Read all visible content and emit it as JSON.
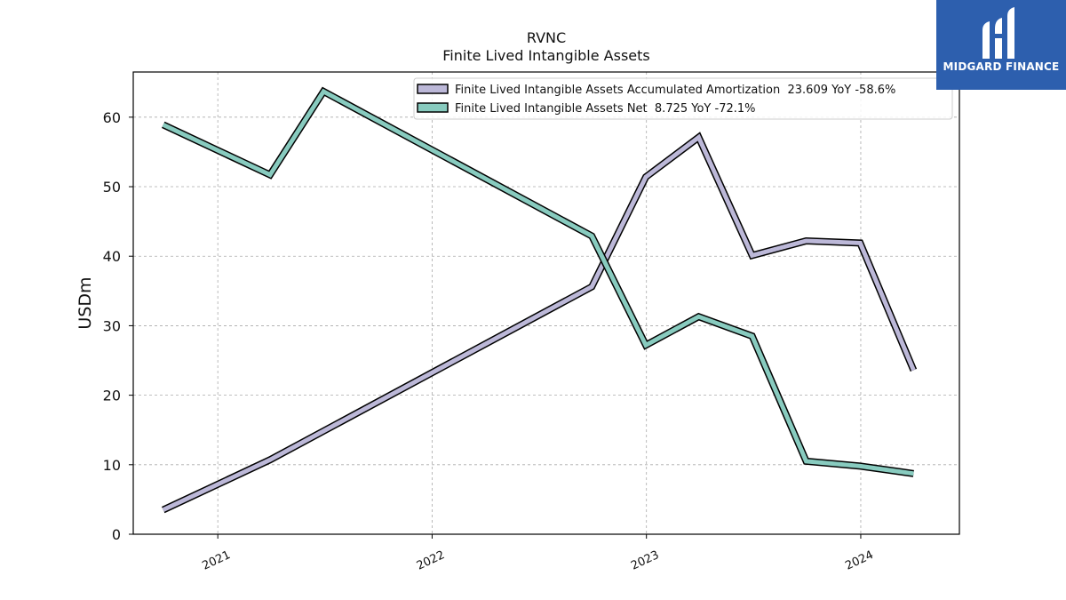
{
  "chart_data": {
    "type": "line",
    "title": "RVNC",
    "subtitle": "Finite Lived Intangible Assets",
    "ylabel": "USDm",
    "xlabel": "",
    "ylim": [
      0,
      66.5
    ],
    "xlim": [
      "2020-08-10",
      "2024-06-17"
    ],
    "yticks": [
      0,
      10,
      20,
      30,
      40,
      50,
      60
    ],
    "xticks": [
      {
        "label": "2021",
        "date": "2021-01-01"
      },
      {
        "label": "2022",
        "date": "2022-01-01"
      },
      {
        "label": "2023",
        "date": "2023-01-01"
      },
      {
        "label": "2024",
        "date": "2024-01-01"
      }
    ],
    "grid": true,
    "legend_position": "top-right",
    "series": [
      {
        "name": "Finite Lived Intangible Assets Accumulated Amortization  23.609 YoY -58.6%",
        "color": "#bcb8d8",
        "points": [
          {
            "x": "2020-09-30",
            "y": 3.5
          },
          {
            "x": "2021-03-31",
            "y": 10.7
          },
          {
            "x": "2022-09-30",
            "y": 35.6
          },
          {
            "x": "2022-12-31",
            "y": 51.4
          },
          {
            "x": "2023-03-31",
            "y": 57.1
          },
          {
            "x": "2023-06-30",
            "y": 40.1
          },
          {
            "x": "2023-09-30",
            "y": 42.2
          },
          {
            "x": "2023-12-31",
            "y": 41.9
          },
          {
            "x": "2024-03-31",
            "y": 23.609
          }
        ]
      },
      {
        "name": "Finite Lived Intangible Assets Net  8.725 YoY -72.1%",
        "color": "#88cbbf",
        "points": [
          {
            "x": "2020-09-30",
            "y": 58.9
          },
          {
            "x": "2021-03-31",
            "y": 51.7
          },
          {
            "x": "2021-06-30",
            "y": 63.7
          },
          {
            "x": "2022-09-30",
            "y": 42.9
          },
          {
            "x": "2022-12-31",
            "y": 27.2
          },
          {
            "x": "2023-03-31",
            "y": 31.3
          },
          {
            "x": "2023-06-30",
            "y": 28.5
          },
          {
            "x": "2023-09-30",
            "y": 10.5
          },
          {
            "x": "2023-12-31",
            "y": 9.8
          },
          {
            "x": "2024-03-31",
            "y": 8.725
          }
        ]
      }
    ]
  },
  "logo": {
    "text": "MIDGARD FINANCE"
  }
}
